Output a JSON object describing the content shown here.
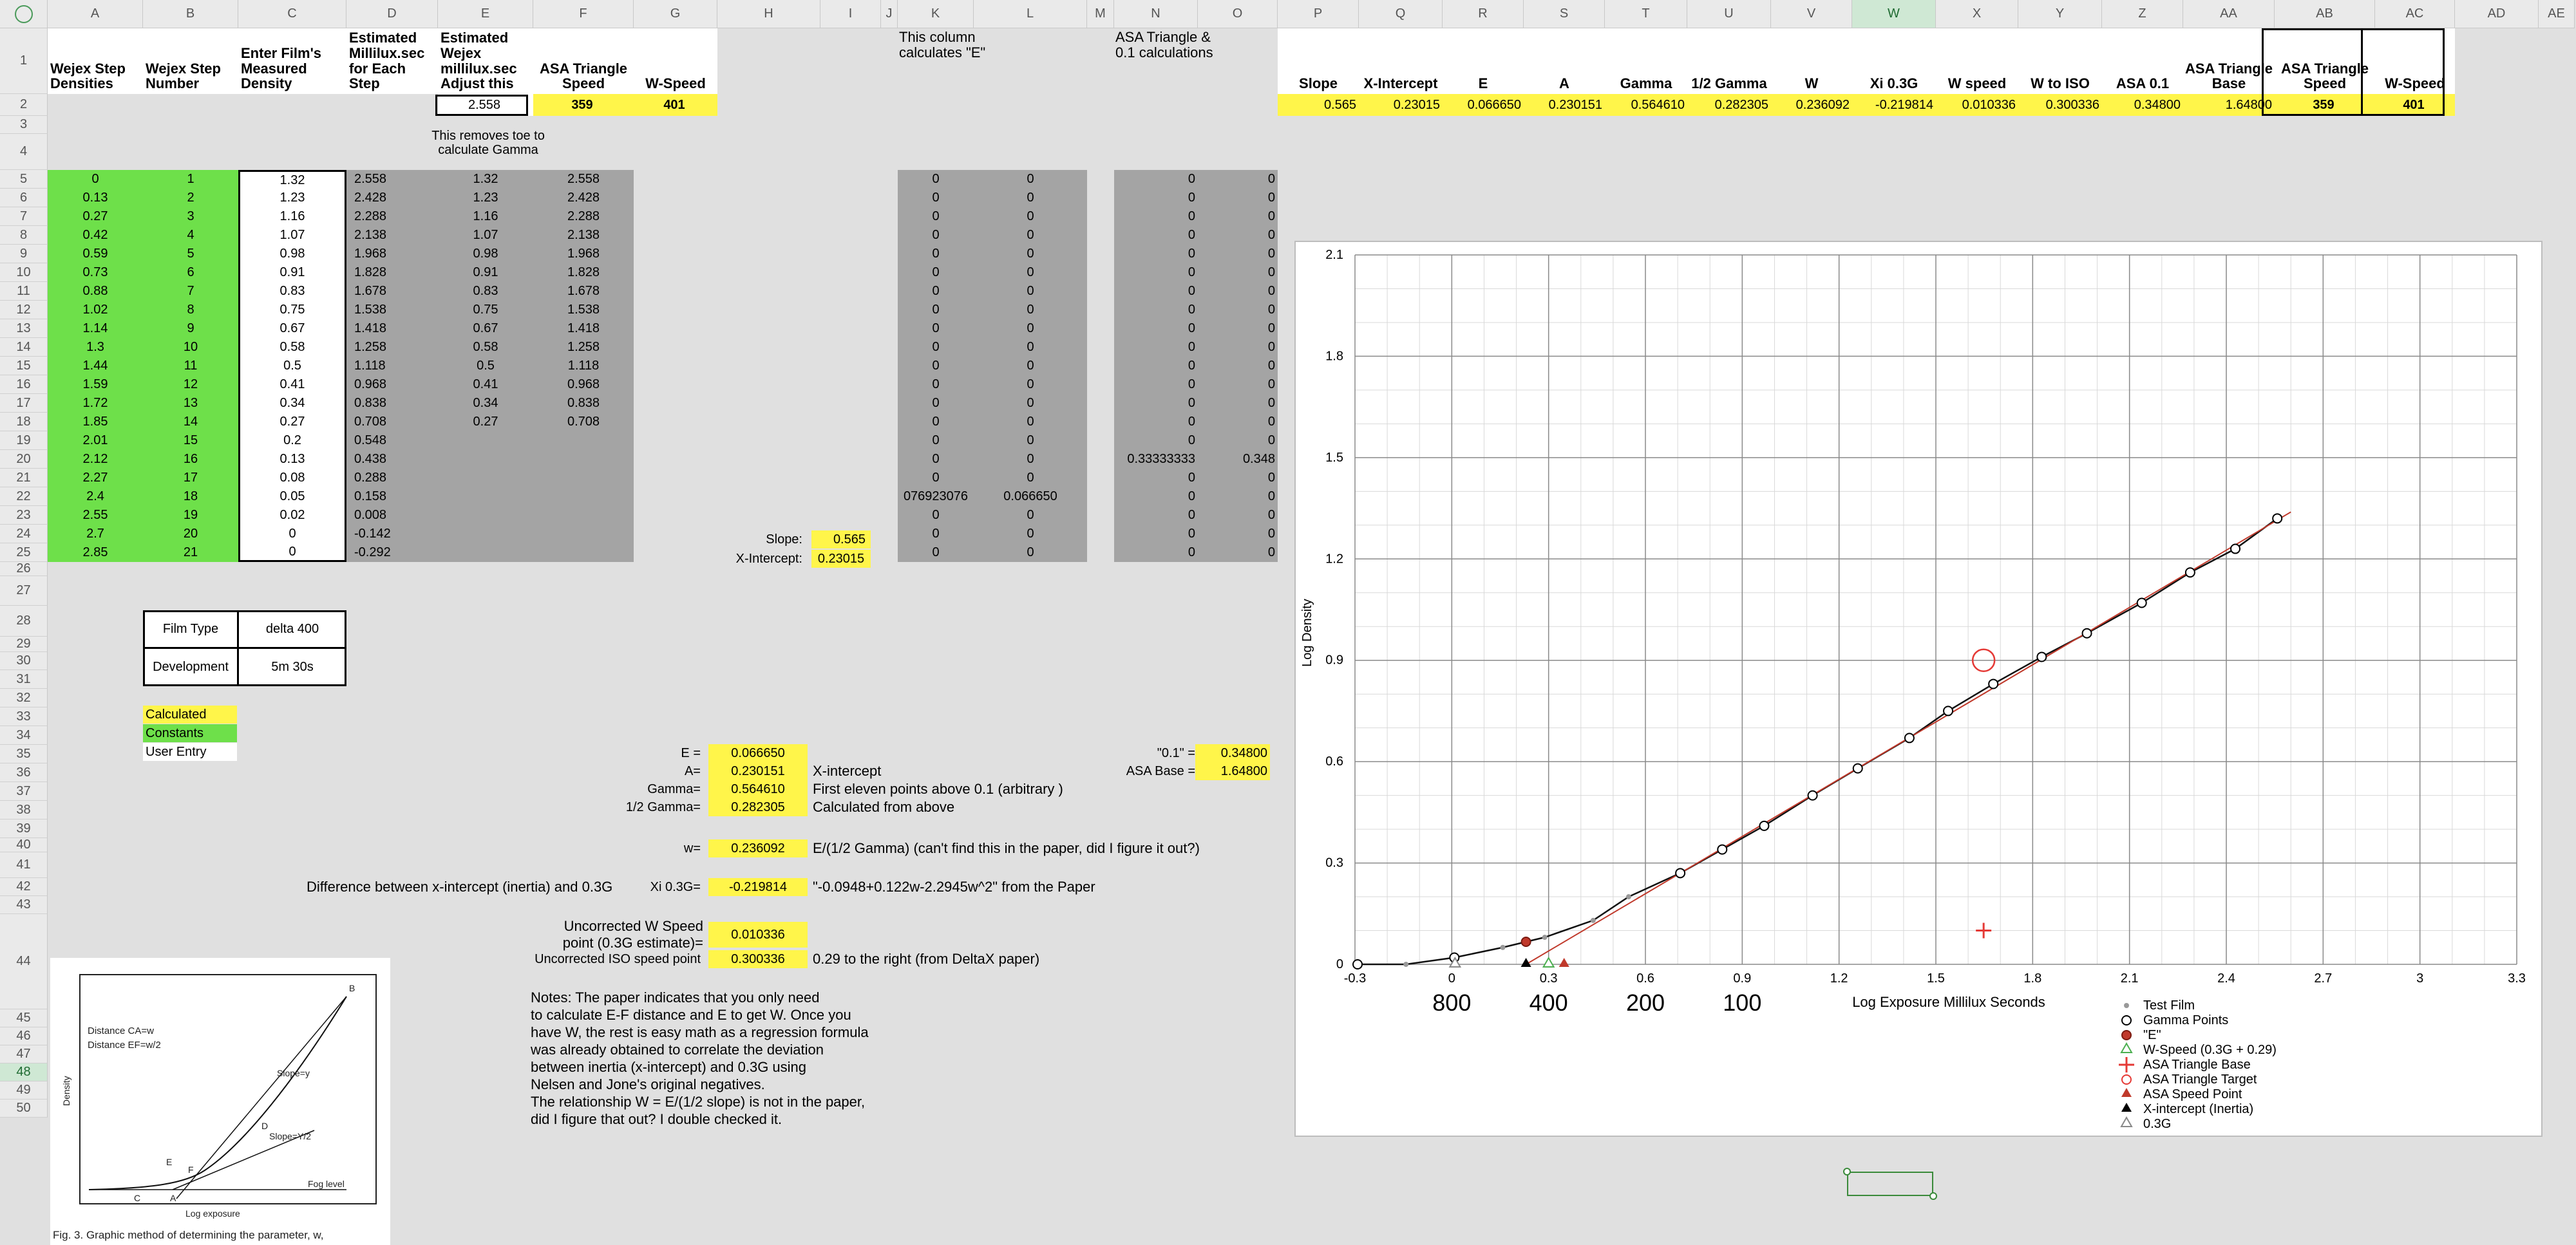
{
  "colors": {
    "green": "#6ee04a",
    "yellow": "#fff54a",
    "gray": "#a4a4a4",
    "selected_col": "#cfe8d4",
    "trend": "#c0392b"
  },
  "corner": {
    "icon": "select-all-circle-icon"
  },
  "columns": [
    "A",
    "B",
    "C",
    "D",
    "E",
    "F",
    "G",
    "H",
    "I",
    "J",
    "K",
    "L",
    "M",
    "N",
    "O",
    "P",
    "Q",
    "R",
    "S",
    "T",
    "U",
    "V",
    "W",
    "X",
    "Y",
    "Z",
    "AA",
    "AB",
    "AC",
    "AD",
    "AE"
  ],
  "rows": [
    "1",
    "2",
    "3",
    "4",
    "5",
    "6",
    "7",
    "8",
    "9",
    "10",
    "11",
    "12",
    "13",
    "14",
    "15",
    "16",
    "17",
    "18",
    "19",
    "20",
    "21",
    "22",
    "23",
    "24",
    "25",
    "26",
    "27",
    "28",
    "29",
    "30",
    "31",
    "32",
    "33",
    "34",
    "35",
    "36",
    "37",
    "38",
    "39",
    "40",
    "41",
    "42",
    "43",
    "44",
    "45",
    "46",
    "47",
    "48",
    "49",
    "50"
  ],
  "selected_column": "W",
  "selected_row": "48",
  "header_row": {
    "A": "Wejex Step Densities",
    "B": "Wejex Step Number",
    "C": "Enter Film's Measured Density",
    "D": "Estimated Millilux.sec for Each Step",
    "E": "Estimated Wejex millilux.sec Adjust this",
    "F": "ASA Triangle Speed",
    "G": "W-Speed",
    "K": "This column calculates \"E\"",
    "N": "ASA Triangle & 0.1 calculations",
    "P": "Slope",
    "Q": "X-Intercept",
    "R": "E",
    "S": "A",
    "T": "Gamma",
    "U": "1/2 Gamma",
    "V": "W",
    "W": "Xi 0.3G",
    "X": "W speed",
    "Y": "W to ISO",
    "Z": "ASA 0.1",
    "AA": "ASA Triangle Base",
    "AB": "ASA Triangle Speed",
    "AC": "W-Speed"
  },
  "row2": {
    "E": "2.558",
    "F": "359",
    "G": "401",
    "P": "0.565",
    "Q": "0.23015",
    "R": "0.066650",
    "S": "0.230151",
    "T": "0.564610",
    "U": "0.282305",
    "V": "0.236092",
    "W": "-0.219814",
    "X": "0.010336",
    "Y": "0.300336",
    "Z": "0.34800",
    "AA": "1.64800",
    "AB": "359",
    "AC": "401"
  },
  "row4_note": "This removes toe to calculate Gamma",
  "steps": {
    "A": [
      "0",
      "0.13",
      "0.27",
      "0.42",
      "0.59",
      "0.73",
      "0.88",
      "1.02",
      "1.14",
      "1.3",
      "1.44",
      "1.59",
      "1.72",
      "1.85",
      "2.01",
      "2.12",
      "2.27",
      "2.4",
      "2.55",
      "2.7",
      "2.85"
    ],
    "B": [
      "1",
      "2",
      "3",
      "4",
      "5",
      "6",
      "7",
      "8",
      "9",
      "10",
      "11",
      "12",
      "13",
      "14",
      "15",
      "16",
      "17",
      "18",
      "19",
      "20",
      "21"
    ],
    "C": [
      "1.32",
      "1.23",
      "1.16",
      "1.07",
      "0.98",
      "0.91",
      "0.83",
      "0.75",
      "0.67",
      "0.58",
      "0.5",
      "0.41",
      "0.34",
      "0.27",
      "0.2",
      "0.13",
      "0.08",
      "0.05",
      "0.02",
      "0",
      "0"
    ],
    "D": [
      "2.558",
      "2.428",
      "2.288",
      "2.138",
      "1.968",
      "1.828",
      "1.678",
      "1.538",
      "1.418",
      "1.258",
      "1.118",
      "0.968",
      "0.838",
      "0.708",
      "0.548",
      "0.438",
      "0.288",
      "0.158",
      "0.008",
      "-0.142",
      "-0.292"
    ],
    "E": [
      "1.32",
      "1.23",
      "1.16",
      "1.07",
      "0.98",
      "0.91",
      "0.83",
      "0.75",
      "0.67",
      "0.58",
      "0.5",
      "0.41",
      "0.34",
      "0.27",
      "",
      "",
      "",
      "",
      "",
      "",
      ""
    ],
    "F": [
      "2.558",
      "2.428",
      "2.288",
      "2.138",
      "1.968",
      "1.828",
      "1.678",
      "1.538",
      "1.418",
      "1.258",
      "1.118",
      "0.968",
      "0.838",
      "0.708",
      "",
      "",
      "",
      "",
      "",
      "",
      ""
    ],
    "K": [
      "0",
      "0",
      "0",
      "0",
      "0",
      "0",
      "0",
      "0",
      "0",
      "0",
      "0",
      "0",
      "0",
      "0",
      "0",
      "0",
      "0",
      "076923076",
      "0",
      "0",
      "0"
    ],
    "L": [
      "0",
      "0",
      "0",
      "0",
      "0",
      "0",
      "0",
      "0",
      "0",
      "0",
      "0",
      "0",
      "0",
      "0",
      "0",
      "0",
      "0",
      "0.066650",
      "0",
      "0",
      "0"
    ],
    "N": [
      "0",
      "0",
      "0",
      "0",
      "0",
      "0",
      "0",
      "0",
      "0",
      "0",
      "0",
      "0",
      "0",
      "0",
      "0",
      "0.33333333",
      "0",
      "0",
      "0",
      "0",
      "0"
    ],
    "O": [
      "0",
      "0",
      "0",
      "0",
      "0",
      "0",
      "0",
      "0",
      "0",
      "0",
      "0",
      "0",
      "0",
      "0",
      "0",
      "0.348",
      "0",
      "0",
      "0",
      "0",
      "0"
    ]
  },
  "slope_block": {
    "slope_label": "Slope:",
    "slope_value": "0.565",
    "xint_label": "X-Intercept:",
    "xint_value": "0.23015"
  },
  "film": {
    "type_label": "Film Type",
    "type_value": "delta 400",
    "dev_label": "Development",
    "dev_value": "5m 30s"
  },
  "legend_key": {
    "calculated": "Calculated",
    "constants": "Constants",
    "user": "User Entry"
  },
  "calc": {
    "e_label": "E =",
    "e_value": "0.066650",
    "a_label": "A=",
    "a_value": "0.230151",
    "a_note": "X-intercept",
    "g_label": "Gamma=",
    "g_value": "0.564610",
    "g_note": "First eleven points above 0.1 (arbitrary )",
    "hg_label": "1/2 Gamma=",
    "hg_value": "0.282305",
    "hg_note": "Calculated from above",
    "w_label": "w=",
    "w_value": "0.236092",
    "w_note": "E/(1/2 Gamma) (can't find this in the paper, did I figure it out?)",
    "xi_desc": "Difference between x-intercept (inertia) and 0.3G",
    "xi_label": "Xi 0.3G=",
    "xi_value": "-0.219814",
    "xi_note": "\"-0.0948+0.122w-2.2945w^2\" from the Paper",
    "uw_label1": "Uncorrected W Speed",
    "uw_label2": "point (0.3G estimate)=",
    "uw_value": "0.010336",
    "uiso_label": "Uncorrected ISO speed point",
    "uiso_value": "0.300336",
    "uiso_note": "0.29 to the right (from DeltaX paper)",
    "p1_label": "\"0.1\" =",
    "p1_value": "0.34800",
    "base_label": "ASA Base =",
    "base_value": "1.64800"
  },
  "notes": [
    "Notes: The paper indicates that you only need",
    "to calculate E-F distance and E to get W. Once you",
    "have W, the rest is easy math as a regression formula",
    "was already obtained to correlate the deviation",
    "between inertia (x-intercept) and 0.3G using",
    "Nelsen and Jone's original negatives.",
    "The relationship W = E/(1/2 slope) is not in the paper,",
    "did I figure that out? I double checked it."
  ],
  "figure": {
    "caption": "Fig. 3. Graphic method of determining the parameter, w,",
    "dist1": "Distance CA=w",
    "dist2": "Distance EF=w/2",
    "slope_y": "Slope=y",
    "slope_y2": "Slope=Y/2",
    "fog": "Fog level",
    "xlab": "Log exposure",
    "ylab": "Density",
    "pts": [
      "B",
      "D",
      "E",
      "F",
      "C",
      "A"
    ]
  },
  "chart_data": {
    "type": "scatter",
    "xlabel": "Log Exposure Millilux Seconds",
    "ylabel": "Log Density",
    "xlim": [
      -0.3,
      3.3
    ],
    "ylim": [
      0,
      2.1
    ],
    "xticks": [
      "-0.3",
      "0",
      "0.3",
      "0.6",
      "0.9",
      "1.2",
      "1.5",
      "1.8",
      "2.1",
      "2.4",
      "2.7",
      "3",
      "3.3"
    ],
    "yticks": [
      "0",
      "0.3",
      "0.6",
      "0.9",
      "1.2",
      "1.5",
      "1.8",
      "2.1"
    ],
    "iso_labels": [
      {
        "x": 0,
        "label": "800"
      },
      {
        "x": 0.3,
        "label": "400"
      },
      {
        "x": 0.6,
        "label": "200"
      },
      {
        "x": 0.9,
        "label": "100"
      }
    ],
    "grid": true,
    "legend_position": "bottom-right",
    "series": [
      {
        "name": "Test Film",
        "marker": "dot",
        "color": "#999999",
        "points": [
          [
            2.558,
            1.32
          ],
          [
            2.428,
            1.23
          ],
          [
            2.288,
            1.16
          ],
          [
            2.138,
            1.07
          ],
          [
            1.968,
            0.98
          ],
          [
            1.828,
            0.91
          ],
          [
            1.678,
            0.83
          ],
          [
            1.538,
            0.75
          ],
          [
            1.418,
            0.67
          ],
          [
            1.258,
            0.58
          ],
          [
            1.118,
            0.5
          ],
          [
            0.968,
            0.41
          ],
          [
            0.838,
            0.34
          ],
          [
            0.708,
            0.27
          ],
          [
            0.548,
            0.2
          ],
          [
            0.438,
            0.13
          ],
          [
            0.288,
            0.08
          ],
          [
            0.158,
            0.05
          ],
          [
            0.008,
            0.02
          ],
          [
            -0.142,
            0
          ],
          [
            -0.292,
            0
          ]
        ]
      },
      {
        "name": "Gamma Points",
        "marker": "circle",
        "color": "#000000",
        "points": [
          [
            2.558,
            1.32
          ],
          [
            2.428,
            1.23
          ],
          [
            2.288,
            1.16
          ],
          [
            2.138,
            1.07
          ],
          [
            1.968,
            0.98
          ],
          [
            1.828,
            0.91
          ],
          [
            1.678,
            0.83
          ],
          [
            1.538,
            0.75
          ],
          [
            1.418,
            0.67
          ],
          [
            1.258,
            0.58
          ],
          [
            1.118,
            0.5
          ],
          [
            0.968,
            0.41
          ],
          [
            0.838,
            0.34
          ],
          [
            0.708,
            0.27
          ],
          [
            0.008,
            0.02
          ],
          [
            -0.292,
            0
          ]
        ]
      },
      {
        "name": "\"E\"",
        "marker": "filled-circle",
        "color": "#c0392b",
        "points": [
          [
            0.23,
            0.0667
          ]
        ]
      },
      {
        "name": "W-Speed (0.3G + 0.29)",
        "marker": "triangle",
        "color": "#4caf50",
        "points": [
          [
            0.3,
            0
          ]
        ]
      },
      {
        "name": "ASA Triangle Base",
        "marker": "plus",
        "color": "#e53935",
        "points": [
          [
            1.648,
            0.1
          ]
        ]
      },
      {
        "name": "ASA Triangle Target",
        "marker": "big-circle",
        "color": "#e53935",
        "points": [
          [
            1.648,
            0.9
          ]
        ]
      },
      {
        "name": "ASA Speed Point",
        "marker": "filled-triangle",
        "color": "#c0392b",
        "points": [
          [
            0.348,
            0
          ]
        ]
      },
      {
        "name": "X-intercept (Inertia)",
        "marker": "filled-triangle",
        "color": "#000000",
        "points": [
          [
            0.23,
            0
          ]
        ]
      },
      {
        "name": "0.3G",
        "marker": "triangle",
        "color": "#888888",
        "points": [
          [
            0.01,
            0
          ]
        ]
      }
    ]
  }
}
